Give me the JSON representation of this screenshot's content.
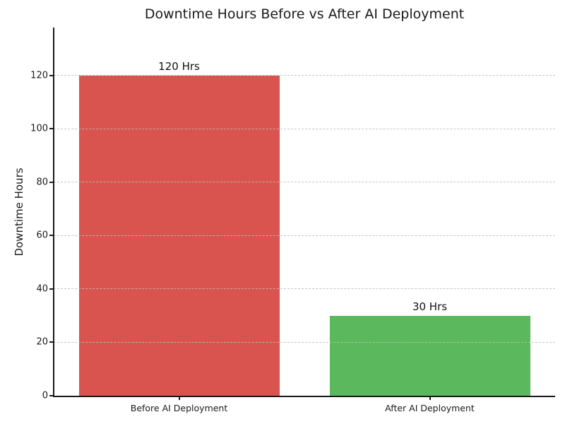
{
  "chart": {
    "title": "Downtime Hours Before vs After AI Deployment",
    "ylabel": "Downtime Hours"
  },
  "chart_data": {
    "type": "bar",
    "title": "Downtime Hours Before vs After AI Deployment",
    "xlabel": "",
    "ylabel": "Downtime Hours",
    "categories": [
      "Before AI Deployment",
      "After AI Deployment"
    ],
    "values": [
      120,
      30
    ],
    "value_labels": [
      "120 Hrs",
      "30 Hrs"
    ],
    "bar_colors": [
      "#d9534f",
      "#5cb85c"
    ],
    "yticks": [
      0,
      20,
      40,
      60,
      80,
      100,
      120
    ],
    "ylim": [
      0,
      138
    ],
    "bar_width_fraction": 0.8,
    "grid": "horizontal-dashed",
    "grid_color": "#bdbdbd",
    "legend": "none",
    "background": "#ffffff",
    "spine_color": "#1a1a1a"
  }
}
